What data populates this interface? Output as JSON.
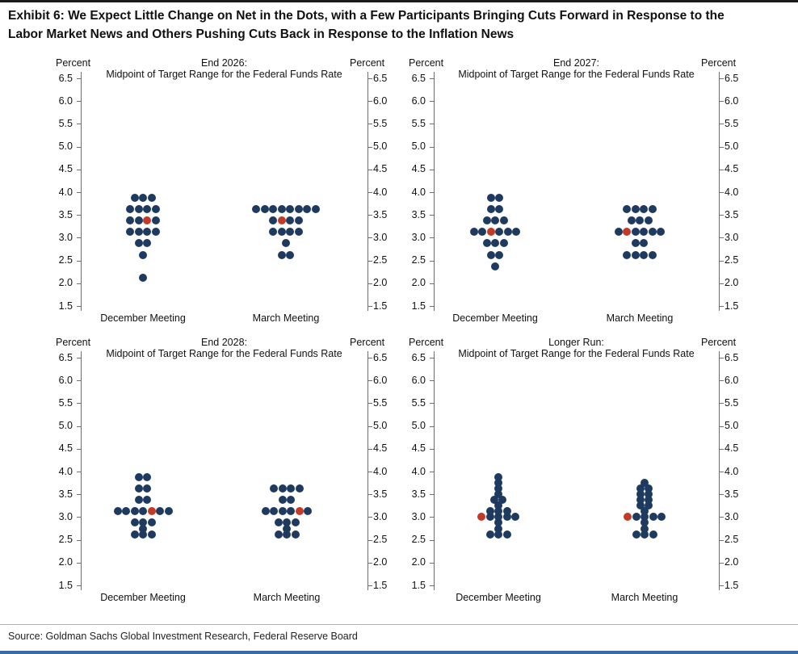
{
  "exhibit": {
    "title_line1": "Exhibit 6: We Expect Little Change on Net in the Dots, with a Few Participants Bringing Cuts Forward in Response to the",
    "title_line2": "Labor Market News and Others Pushing Cuts Back in Response to the Inflation News",
    "source": "Source: Goldman Sachs Global Investment Research, Federal Reserve Board"
  },
  "colors": {
    "dot": "#1f3a5f",
    "gs_median_dot": "#c23b28",
    "axis": "#6e6e6e",
    "bottom_bar": "#3d6aa5"
  },
  "chart_data": [
    {
      "type": "scatter",
      "id": "end-2026",
      "title_line1": "End 2026:",
      "title_line2": "Midpoint of Target Range for the Federal Funds Rate",
      "ylabel": "Percent",
      "ylim": [
        1.5,
        6.5
      ],
      "yticks": [
        6.5,
        6.0,
        5.5,
        5.0,
        4.5,
        4.0,
        3.5,
        3.0,
        2.5,
        2.0,
        1.5
      ],
      "ytick_labels": [
        "6.5",
        "6.0",
        "5.5",
        "5.0",
        "4.5",
        "4.0",
        "3.5",
        "3.0",
        "2.5",
        "2.0",
        "1.5"
      ],
      "categories": [
        "December Meeting",
        "March Meeting"
      ],
      "series": [
        {
          "name": "December Meeting",
          "gs_median_rate": 3.375,
          "distribution": [
            {
              "rate": 3.875,
              "count": 3
            },
            {
              "rate": 3.625,
              "count": 4
            },
            {
              "rate": 3.375,
              "count": 4,
              "median_index": 2
            },
            {
              "rate": 3.125,
              "count": 4
            },
            {
              "rate": 2.875,
              "count": 2
            },
            {
              "rate": 2.625,
              "count": 1
            },
            {
              "rate": 2.125,
              "count": 1
            }
          ]
        },
        {
          "name": "March Meeting",
          "gs_median_rate": 3.375,
          "distribution": [
            {
              "rate": 3.625,
              "count": 8
            },
            {
              "rate": 3.375,
              "count": 4,
              "median_index": 1
            },
            {
              "rate": 3.125,
              "count": 4
            },
            {
              "rate": 2.875,
              "count": 1
            },
            {
              "rate": 2.625,
              "count": 2
            }
          ]
        }
      ]
    },
    {
      "type": "scatter",
      "id": "end-2027",
      "title_line1": "End 2027:",
      "title_line2": "Midpoint of Target Range for the Federal Funds Rate",
      "ylabel": "Percent",
      "ylim": [
        1.5,
        6.5
      ],
      "yticks": [
        6.5,
        6.0,
        5.5,
        5.0,
        4.5,
        4.0,
        3.5,
        3.0,
        2.5,
        2.0,
        1.5
      ],
      "ytick_labels": [
        "6.5",
        "6.0",
        "5.5",
        "5.0",
        "4.5",
        "4.0",
        "3.5",
        "3.0",
        "2.5",
        "2.0",
        "1.5"
      ],
      "categories": [
        "December Meeting",
        "March Meeting"
      ],
      "series": [
        {
          "name": "December Meeting",
          "gs_median_rate": 3.125,
          "distribution": [
            {
              "rate": 3.875,
              "count": 2
            },
            {
              "rate": 3.625,
              "count": 2
            },
            {
              "rate": 3.375,
              "count": 3
            },
            {
              "rate": 3.125,
              "count": 6,
              "median_index": 2
            },
            {
              "rate": 2.875,
              "count": 3
            },
            {
              "rate": 2.625,
              "count": 2
            },
            {
              "rate": 2.375,
              "count": 1
            }
          ]
        },
        {
          "name": "March Meeting",
          "gs_median_rate": 3.125,
          "distribution": [
            {
              "rate": 3.625,
              "count": 4
            },
            {
              "rate": 3.375,
              "count": 3
            },
            {
              "rate": 3.125,
              "count": 6,
              "median_index": 1
            },
            {
              "rate": 2.875,
              "count": 2
            },
            {
              "rate": 2.625,
              "count": 4
            }
          ]
        }
      ]
    },
    {
      "type": "scatter",
      "id": "end-2028",
      "title_line1": "End 2028:",
      "title_line2": "Midpoint of Target Range for the Federal Funds Rate",
      "ylabel": "Percent",
      "ylim": [
        1.5,
        6.5
      ],
      "yticks": [
        6.5,
        6.0,
        5.5,
        5.0,
        4.5,
        4.0,
        3.5,
        3.0,
        2.5,
        2.0,
        1.5
      ],
      "ytick_labels": [
        "6.5",
        "6.0",
        "5.5",
        "5.0",
        "4.5",
        "4.0",
        "3.5",
        "3.0",
        "2.5",
        "2.0",
        "1.5"
      ],
      "categories": [
        "December Meeting",
        "March Meeting"
      ],
      "series": [
        {
          "name": "December Meeting",
          "gs_median_rate": 3.125,
          "distribution": [
            {
              "rate": 3.875,
              "count": 2
            },
            {
              "rate": 3.625,
              "count": 2
            },
            {
              "rate": 3.375,
              "count": 2
            },
            {
              "rate": 3.125,
              "count": 7,
              "median_index": 4
            },
            {
              "rate": 2.875,
              "count": 3
            },
            {
              "rate": 2.75,
              "count": 1
            },
            {
              "rate": 2.625,
              "count": 3
            }
          ]
        },
        {
          "name": "March Meeting",
          "gs_median_rate": 3.125,
          "distribution": [
            {
              "rate": 3.625,
              "count": 4
            },
            {
              "rate": 3.375,
              "count": 2
            },
            {
              "rate": 3.125,
              "count": 6,
              "median_index": 4
            },
            {
              "rate": 2.875,
              "count": 3
            },
            {
              "rate": 2.75,
              "count": 1
            },
            {
              "rate": 2.625,
              "count": 3
            }
          ]
        }
      ]
    },
    {
      "type": "scatter",
      "id": "longer-run",
      "title_line1": "Longer Run:",
      "title_line2": "Midpoint of Target Range for the Federal Funds Rate",
      "ylabel": "Percent",
      "ylim": [
        1.5,
        6.5
      ],
      "yticks": [
        6.5,
        6.0,
        5.5,
        5.0,
        4.5,
        4.0,
        3.5,
        3.0,
        2.5,
        2.0,
        1.5
      ],
      "ytick_labels": [
        "6.5",
        "6.0",
        "5.5",
        "5.0",
        "4.5",
        "4.0",
        "3.5",
        "3.0",
        "2.5",
        "2.0",
        "1.5"
      ],
      "categories": [
        "December Meeting",
        "March Meeting"
      ],
      "series": [
        {
          "name": "December Meeting",
          "gs_median_rate": 3.0,
          "distribution": [
            {
              "rate": 3.875,
              "count": 1
            },
            {
              "rate": 3.75,
              "count": 1
            },
            {
              "rate": 3.625,
              "count": 1
            },
            {
              "rate": 3.5,
              "count": 1
            },
            {
              "rate": 3.375,
              "count": 2
            },
            {
              "rate": 3.25,
              "count": 1
            },
            {
              "rate": 3.125,
              "count": 3
            },
            {
              "rate": 3.0,
              "count": 5,
              "median_index": 0
            },
            {
              "rate": 2.875,
              "count": 1
            },
            {
              "rate": 2.75,
              "count": 1
            },
            {
              "rate": 2.625,
              "count": 3
            }
          ]
        },
        {
          "name": "March Meeting",
          "gs_median_rate": 3.0,
          "distribution": [
            {
              "rate": 3.75,
              "count": 1
            },
            {
              "rate": 3.625,
              "count": 2
            },
            {
              "rate": 3.5,
              "count": 2
            },
            {
              "rate": 3.375,
              "count": 2
            },
            {
              "rate": 3.25,
              "count": 2
            },
            {
              "rate": 3.125,
              "count": 1
            },
            {
              "rate": 3.0,
              "count": 5,
              "median_index": 0
            },
            {
              "rate": 2.875,
              "count": 1
            },
            {
              "rate": 2.75,
              "count": 1
            },
            {
              "rate": 2.625,
              "count": 3
            }
          ]
        }
      ]
    }
  ]
}
